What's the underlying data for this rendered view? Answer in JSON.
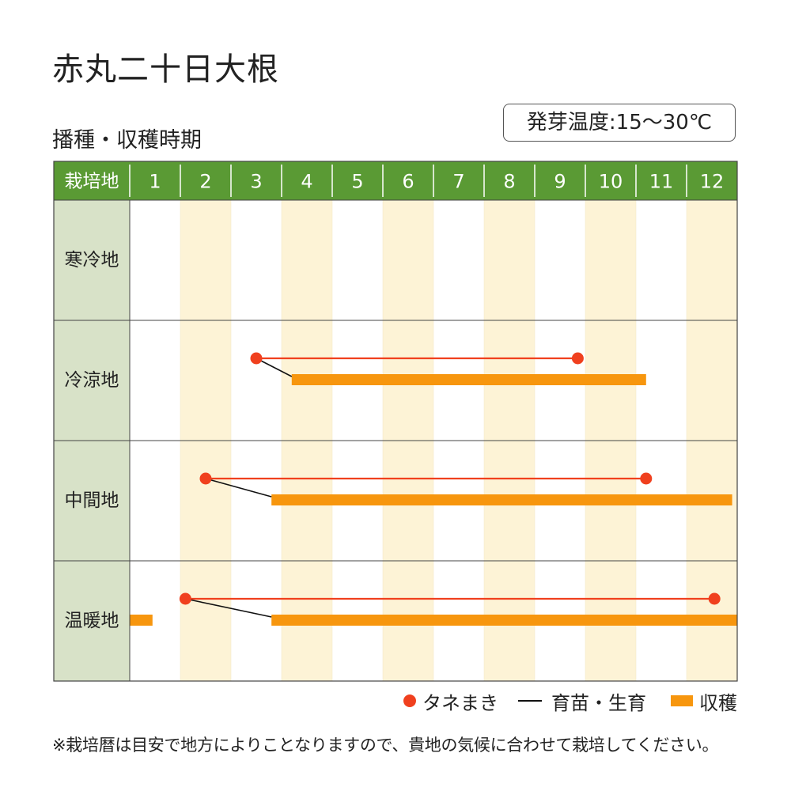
{
  "title": "赤丸二十日大根",
  "subtitle": "播種・収穫時期",
  "germination": "発芽温度:15〜30℃",
  "colors": {
    "header_green": "#5a9a34",
    "region_cell": "#d8e2c8",
    "stripe": "#fdf3d6",
    "sowing": "#f0401e",
    "harvest": "#f7960e",
    "seedling_line": "#111111",
    "grid": "#444444"
  },
  "chart_data": {
    "type": "table",
    "header_label": "栽培地",
    "months": [
      "1",
      "2",
      "3",
      "4",
      "5",
      "6",
      "7",
      "8",
      "9",
      "10",
      "11",
      "12"
    ],
    "regions": [
      {
        "name": "寒冷地",
        "sowing": null,
        "harvest": []
      },
      {
        "name": "冷涼地",
        "sowing": [
          3.5,
          9.85
        ],
        "seedling_to": 4.2,
        "harvest": [
          [
            4.2,
            11.2
          ]
        ]
      },
      {
        "name": "中間地",
        "sowing": [
          2.5,
          11.2
        ],
        "seedling_to": 3.8,
        "harvest": [
          [
            3.8,
            12.9
          ]
        ]
      },
      {
        "name": "温暖地",
        "sowing": [
          2.1,
          12.55
        ],
        "seedling_to": 3.8,
        "harvest": [
          [
            1.0,
            1.45
          ],
          [
            3.8,
            13.0
          ]
        ]
      }
    ],
    "legend": [
      {
        "key": "sowing",
        "label": "タネまき"
      },
      {
        "key": "seedling",
        "label": "育苗・生育"
      },
      {
        "key": "harvest",
        "label": "収穫"
      }
    ]
  },
  "footnote": "※栽培暦は目安で地方によりことなりますので、貴地の気候に合わせて栽培してください。"
}
